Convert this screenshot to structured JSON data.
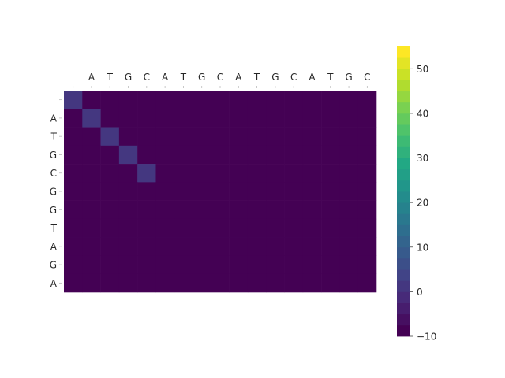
{
  "chart_data": {
    "type": "heatmap",
    "title": "",
    "xlabel": "",
    "ylabel": "",
    "columns": [
      "",
      "A",
      "T",
      "G",
      "C",
      "A",
      "T",
      "G",
      "C",
      "A",
      "T",
      "G",
      "C",
      "A",
      "T",
      "G",
      "C"
    ],
    "rows": [
      "",
      "A",
      "T",
      "G",
      "C",
      "G",
      "G",
      "T",
      "A",
      "G",
      "A"
    ],
    "values": [
      [
        0,
        -10,
        -10,
        -10,
        -10,
        -10,
        -10,
        -10,
        -10,
        -10,
        -10,
        -10,
        -10,
        -10,
        -10,
        -10,
        -10
      ],
      [
        -10,
        0,
        -10,
        -10,
        -10,
        -10,
        -10,
        -10,
        -10,
        -10,
        -10,
        -10,
        -10,
        -10,
        -10,
        -10,
        -10
      ],
      [
        -10,
        -10,
        0,
        -10,
        -10,
        -10,
        -10,
        -10,
        -10,
        -10,
        -10,
        -10,
        -10,
        -10,
        -10,
        -10,
        -10
      ],
      [
        -10,
        -10,
        -10,
        0,
        -10,
        -10,
        -10,
        -10,
        -10,
        -10,
        -10,
        -10,
        -10,
        -10,
        -10,
        -10,
        -10
      ],
      [
        -10,
        -10,
        -10,
        -10,
        0,
        -10,
        -10,
        -10,
        -10,
        -10,
        -10,
        -10,
        -10,
        -10,
        -10,
        -10,
        -10
      ],
      [
        -10,
        -10,
        -10,
        -10,
        -10,
        -10,
        -10,
        -10,
        -10,
        -10,
        -10,
        -10,
        -10,
        -10,
        -10,
        -10,
        -10
      ],
      [
        -10,
        -10,
        -10,
        -10,
        -10,
        -10,
        -10,
        -10,
        -10,
        -10,
        -10,
        -10,
        -10,
        -10,
        -10,
        -10,
        -10
      ],
      [
        -10,
        -10,
        -10,
        -10,
        -10,
        -10,
        -10,
        -10,
        -10,
        -10,
        -10,
        -10,
        -10,
        -10,
        -10,
        -10,
        -10
      ],
      [
        -10,
        -10,
        -10,
        -10,
        -10,
        -10,
        -10,
        -10,
        -10,
        -10,
        -10,
        -10,
        -10,
        -10,
        -10,
        -10,
        -10
      ],
      [
        -10,
        -10,
        -10,
        -10,
        -10,
        -10,
        -10,
        -10,
        -10,
        -10,
        -10,
        -10,
        -10,
        -10,
        -10,
        -10,
        -10
      ],
      [
        -10,
        -10,
        -10,
        -10,
        -10,
        -10,
        -10,
        -10,
        -10,
        -10,
        -10,
        -10,
        -10,
        -10,
        -10,
        -10,
        -10
      ]
    ],
    "colorbar": {
      "range": [
        -10,
        55
      ],
      "ticks": [
        -10,
        0,
        10,
        20,
        30,
        40,
        50
      ],
      "tick_labels": [
        "−10",
        "0",
        "10",
        "20",
        "30",
        "40",
        "50"
      ],
      "levels": 26
    },
    "colormap": "viridis",
    "x_tick_position": "top",
    "grid": false
  }
}
